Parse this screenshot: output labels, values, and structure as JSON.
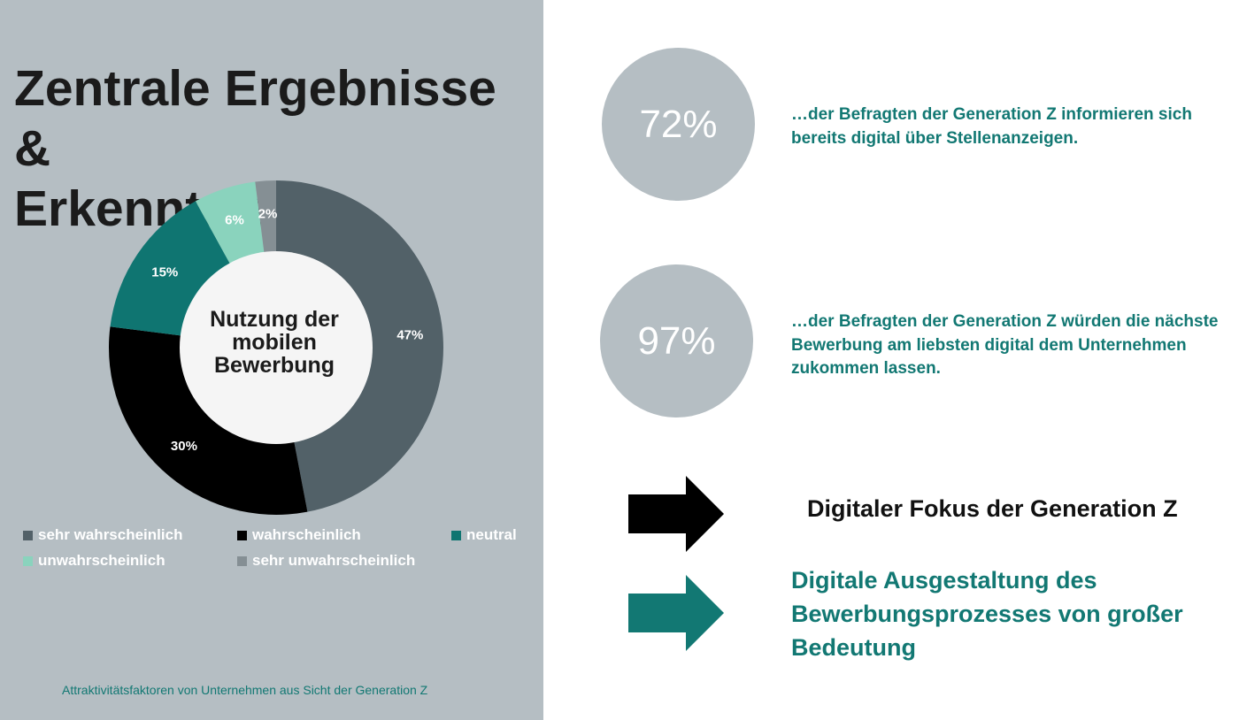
{
  "slide": {
    "title_lines": [
      "Zentrale Ergebnisse &",
      "Erkenntnisse"
    ],
    "caption": "Attraktivitätsfaktoren von Unternehmen aus Sicht der Generation Z",
    "colors": {
      "panel": "#b5bec3",
      "accent": "#127873",
      "dark": "#1b1b1b",
      "white": "#ffffff"
    }
  },
  "chart_data": {
    "type": "pie",
    "variant": "donut",
    "title": "",
    "center_label_lines": [
      "Nutzung der",
      "mobilen",
      "Bewerbung"
    ],
    "categories": [
      "sehr wahrscheinlich",
      "wahrscheinlich",
      "neutral",
      "unwahrscheinlich",
      "sehr unwahrscheinlich"
    ],
    "values": [
      47,
      30,
      15,
      6,
      2
    ],
    "value_labels": [
      "47%",
      "30%",
      "15%",
      "6%",
      "2%"
    ],
    "colors": [
      "#526168",
      "#000000",
      "#0f7571",
      "#8ad3bd",
      "#858f94"
    ],
    "legend_placement": "bottom"
  },
  "stats": [
    {
      "value": "72%",
      "text_lines": [
        "…der Befragten der Generation Z informieren sich",
        "bereits digital über Stellenanzeigen."
      ]
    },
    {
      "value": "97%",
      "text_lines": [
        "…der Befragten der Generation Z würden die nächste",
        "Bewerbung am liebsten digital dem Unternehmen",
        "zukommen lassen."
      ]
    }
  ],
  "conclusions": [
    {
      "icon": "arrow-right-icon",
      "color": "#000000",
      "lines": [
        "Digitaler Fokus der Generation Z"
      ]
    },
    {
      "icon": "arrow-right-icon",
      "color": "#127873",
      "lines": [
        "Digitale Ausgestaltung des",
        "Bewerbungsprozesses von großer",
        "Bedeutung"
      ]
    }
  ]
}
